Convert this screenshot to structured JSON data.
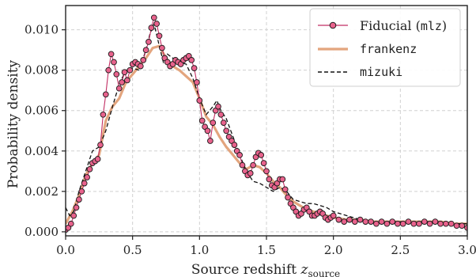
{
  "chart_data": {
    "type": "line",
    "xlabel": "Source redshift",
    "xlabel_symbol": "z",
    "xlabel_sub": "source",
    "ylabel": "Probability density",
    "xlim": [
      0.0,
      3.0
    ],
    "ylim": [
      -0.0002,
      0.0112
    ],
    "xticks": [
      0.0,
      0.5,
      1.0,
      1.5,
      2.0,
      2.5,
      3.0
    ],
    "xtick_labels": [
      "0.0",
      "0.5",
      "1.0",
      "1.5",
      "2.0",
      "2.5",
      "3.0"
    ],
    "yticks": [
      0.0,
      0.002,
      0.004,
      0.006,
      0.008,
      0.01
    ],
    "ytick_labels": [
      "0.000",
      "0.002",
      "0.004",
      "0.006",
      "0.008",
      "0.010"
    ],
    "grid": true,
    "legend_position": "top-right",
    "colors": {
      "fiducial_line": "#c22e63",
      "fiducial_marker": "#e8628c",
      "marker_edge": "#1a1a1a",
      "frankenz": "#e3a57e",
      "mizuki": "#111111",
      "grid": "#d0d0d0"
    },
    "series": [
      {
        "name": "Fiducial",
        "name_code": "mlz",
        "style": "line-markers",
        "x": [
          0.0,
          0.02,
          0.04,
          0.06,
          0.08,
          0.1,
          0.12,
          0.14,
          0.16,
          0.18,
          0.2,
          0.22,
          0.24,
          0.26,
          0.28,
          0.3,
          0.32,
          0.34,
          0.36,
          0.38,
          0.4,
          0.42,
          0.44,
          0.46,
          0.48,
          0.5,
          0.52,
          0.54,
          0.56,
          0.58,
          0.6,
          0.62,
          0.64,
          0.66,
          0.68,
          0.7,
          0.72,
          0.74,
          0.76,
          0.78,
          0.8,
          0.82,
          0.84,
          0.86,
          0.88,
          0.9,
          0.92,
          0.94,
          0.96,
          0.98,
          1.0,
          1.02,
          1.04,
          1.06,
          1.08,
          1.1,
          1.12,
          1.14,
          1.16,
          1.18,
          1.2,
          1.22,
          1.24,
          1.26,
          1.28,
          1.3,
          1.32,
          1.34,
          1.36,
          1.38,
          1.4,
          1.42,
          1.44,
          1.46,
          1.48,
          1.5,
          1.52,
          1.54,
          1.56,
          1.58,
          1.6,
          1.62,
          1.64,
          1.66,
          1.68,
          1.7,
          1.72,
          1.74,
          1.76,
          1.78,
          1.8,
          1.82,
          1.84,
          1.86,
          1.88,
          1.9,
          1.92,
          1.94,
          1.96,
          1.98,
          2.0,
          2.04,
          2.08,
          2.12,
          2.16,
          2.2,
          2.24,
          2.28,
          2.32,
          2.36,
          2.4,
          2.44,
          2.48,
          2.52,
          2.56,
          2.6,
          2.64,
          2.68,
          2.72,
          2.76,
          2.8,
          2.84,
          2.88,
          2.92,
          2.96,
          3.0
        ],
        "values": [
          0.0001,
          0.0002,
          0.0004,
          0.0008,
          0.0012,
          0.0016,
          0.002,
          0.0024,
          0.0027,
          0.0031,
          0.0034,
          0.0035,
          0.0036,
          0.0043,
          0.0058,
          0.0068,
          0.008,
          0.0088,
          0.0084,
          0.0078,
          0.0071,
          0.0074,
          0.0079,
          0.0075,
          0.008,
          0.0083,
          0.0084,
          0.0083,
          0.0082,
          0.0085,
          0.009,
          0.0094,
          0.0101,
          0.0106,
          0.0103,
          0.0097,
          0.0091,
          0.0086,
          0.0084,
          0.0082,
          0.0083,
          0.0085,
          0.0084,
          0.0083,
          0.0085,
          0.0086,
          0.0087,
          0.0085,
          0.0081,
          0.0074,
          0.0065,
          0.0055,
          0.0052,
          0.005,
          0.0045,
          0.0054,
          0.006,
          0.0062,
          0.0058,
          0.0054,
          0.005,
          0.0047,
          0.0045,
          0.0043,
          0.004,
          0.0038,
          0.0033,
          0.003,
          0.0028,
          0.0029,
          0.0033,
          0.0037,
          0.0039,
          0.0038,
          0.0034,
          0.003,
          0.0026,
          0.0023,
          0.0022,
          0.0024,
          0.0026,
          0.0026,
          0.0021,
          0.0017,
          0.0014,
          0.0012,
          0.001,
          0.0008,
          0.0009,
          0.0011,
          0.0012,
          0.001,
          0.0008,
          0.0008,
          0.0009,
          0.001,
          0.0009,
          0.0007,
          0.0006,
          0.0007,
          0.0008,
          0.0006,
          0.0005,
          0.0006,
          0.0005,
          0.0006,
          0.0005,
          0.0005,
          0.0004,
          0.0005,
          0.0004,
          0.0005,
          0.0004,
          0.0004,
          0.0005,
          0.0004,
          0.0004,
          0.0005,
          0.0004,
          0.0005,
          0.0004,
          0.0004,
          0.0004,
          0.0003,
          0.0003,
          0.0002
        ]
      },
      {
        "name": "frankenz",
        "style": "thick-line",
        "x": [
          0.0,
          0.05,
          0.1,
          0.15,
          0.2,
          0.25,
          0.3,
          0.35,
          0.4,
          0.45,
          0.5,
          0.55,
          0.6,
          0.65,
          0.7,
          0.75,
          0.8,
          0.85,
          0.9,
          0.95,
          1.0,
          1.05,
          1.1,
          1.15,
          1.2,
          1.25,
          1.3,
          1.35,
          1.4,
          1.45,
          1.5,
          1.55,
          1.6,
          1.65,
          1.7,
          1.75,
          1.8,
          1.85,
          1.9,
          1.95,
          2.0,
          2.1,
          2.2,
          2.3,
          2.4,
          2.5,
          2.6,
          2.7,
          2.8,
          2.9,
          3.0
        ],
        "values": [
          0.0004,
          0.001,
          0.0018,
          0.0028,
          0.0034,
          0.0038,
          0.0055,
          0.0062,
          0.0066,
          0.0074,
          0.0078,
          0.0082,
          0.0086,
          0.0091,
          0.0092,
          0.0086,
          0.0082,
          0.008,
          0.0077,
          0.0074,
          0.0066,
          0.0057,
          0.0053,
          0.0047,
          0.0042,
          0.0038,
          0.0034,
          0.0031,
          0.0033,
          0.0032,
          0.0029,
          0.0025,
          0.0022,
          0.0018,
          0.0015,
          0.0013,
          0.0011,
          0.001,
          0.0009,
          0.0008,
          0.0007,
          0.0006,
          0.0006,
          0.0005,
          0.0005,
          0.0005,
          0.0005,
          0.0005,
          0.0005,
          0.0004,
          0.0004
        ]
      },
      {
        "name": "mizuki",
        "name_code": "mizuki",
        "style": "dashed-line",
        "x": [
          0.0,
          0.03,
          0.06,
          0.1,
          0.15,
          0.2,
          0.25,
          0.3,
          0.35,
          0.4,
          0.45,
          0.5,
          0.55,
          0.6,
          0.63,
          0.66,
          0.7,
          0.73,
          0.76,
          0.8,
          0.85,
          0.9,
          0.95,
          1.0,
          1.05,
          1.1,
          1.13,
          1.16,
          1.2,
          1.25,
          1.3,
          1.35,
          1.4,
          1.45,
          1.5,
          1.55,
          1.6,
          1.65,
          1.7,
          1.75,
          1.8,
          1.85,
          1.9,
          1.95,
          2.0,
          2.1,
          2.2,
          2.3,
          2.4,
          2.5,
          2.6,
          2.7,
          2.8,
          2.9,
          3.0
        ],
        "values": [
          0.0012,
          0.0008,
          0.001,
          0.002,
          0.003,
          0.004,
          0.0042,
          0.005,
          0.0062,
          0.0073,
          0.008,
          0.0081,
          0.008,
          0.009,
          0.0098,
          0.0103,
          0.0092,
          0.0084,
          0.0088,
          0.0086,
          0.0084,
          0.0083,
          0.0076,
          0.0066,
          0.0058,
          0.0062,
          0.0065,
          0.006,
          0.0056,
          0.0047,
          0.0038,
          0.003,
          0.0025,
          0.0024,
          0.0022,
          0.002,
          0.0022,
          0.002,
          0.0016,
          0.0015,
          0.0014,
          0.0014,
          0.0013,
          0.0012,
          0.001,
          0.0008,
          0.0006,
          0.0005,
          0.0005,
          0.0005,
          0.0005,
          0.0005,
          0.0005,
          0.0004,
          0.0004
        ]
      }
    ]
  }
}
